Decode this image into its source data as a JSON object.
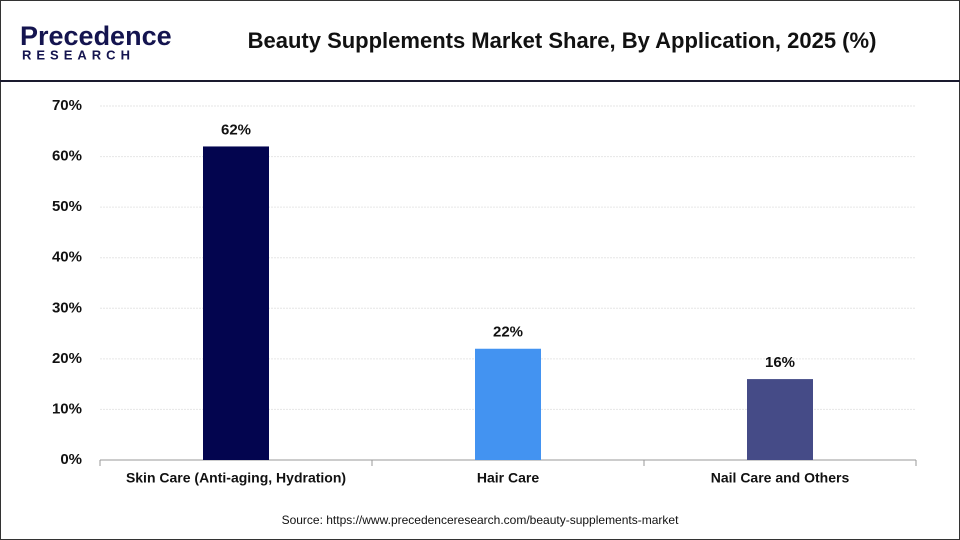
{
  "chart_data": {
    "type": "bar",
    "title": "Beauty Supplements Market Share, By Application, 2025 (%)",
    "logo": {
      "name": "Precedence",
      "subtitle": "RESEARCH"
    },
    "source": "Source: https://www.precedenceresearch.com/beauty-supplements-market",
    "categories": [
      "Skin Care (Anti-aging, Hydration)",
      "Hair Care",
      "Nail Care and Others"
    ],
    "values": [
      62,
      22,
      16
    ],
    "value_labels": [
      "62%",
      "22%",
      "16%"
    ],
    "colors": [
      "#03054f",
      "#4393f1",
      "#454b87"
    ],
    "ylim": [
      0,
      70
    ],
    "yticks": [
      {
        "value": 0,
        "label": "0%"
      },
      {
        "value": 10,
        "label": "10%"
      },
      {
        "value": 20,
        "label": "20%"
      },
      {
        "value": 30,
        "label": "30%"
      },
      {
        "value": 40,
        "label": "40%"
      },
      {
        "value": 50,
        "label": "50%"
      },
      {
        "value": 60,
        "label": "60%"
      },
      {
        "value": 70,
        "label": "70%"
      }
    ],
    "grid": true
  }
}
